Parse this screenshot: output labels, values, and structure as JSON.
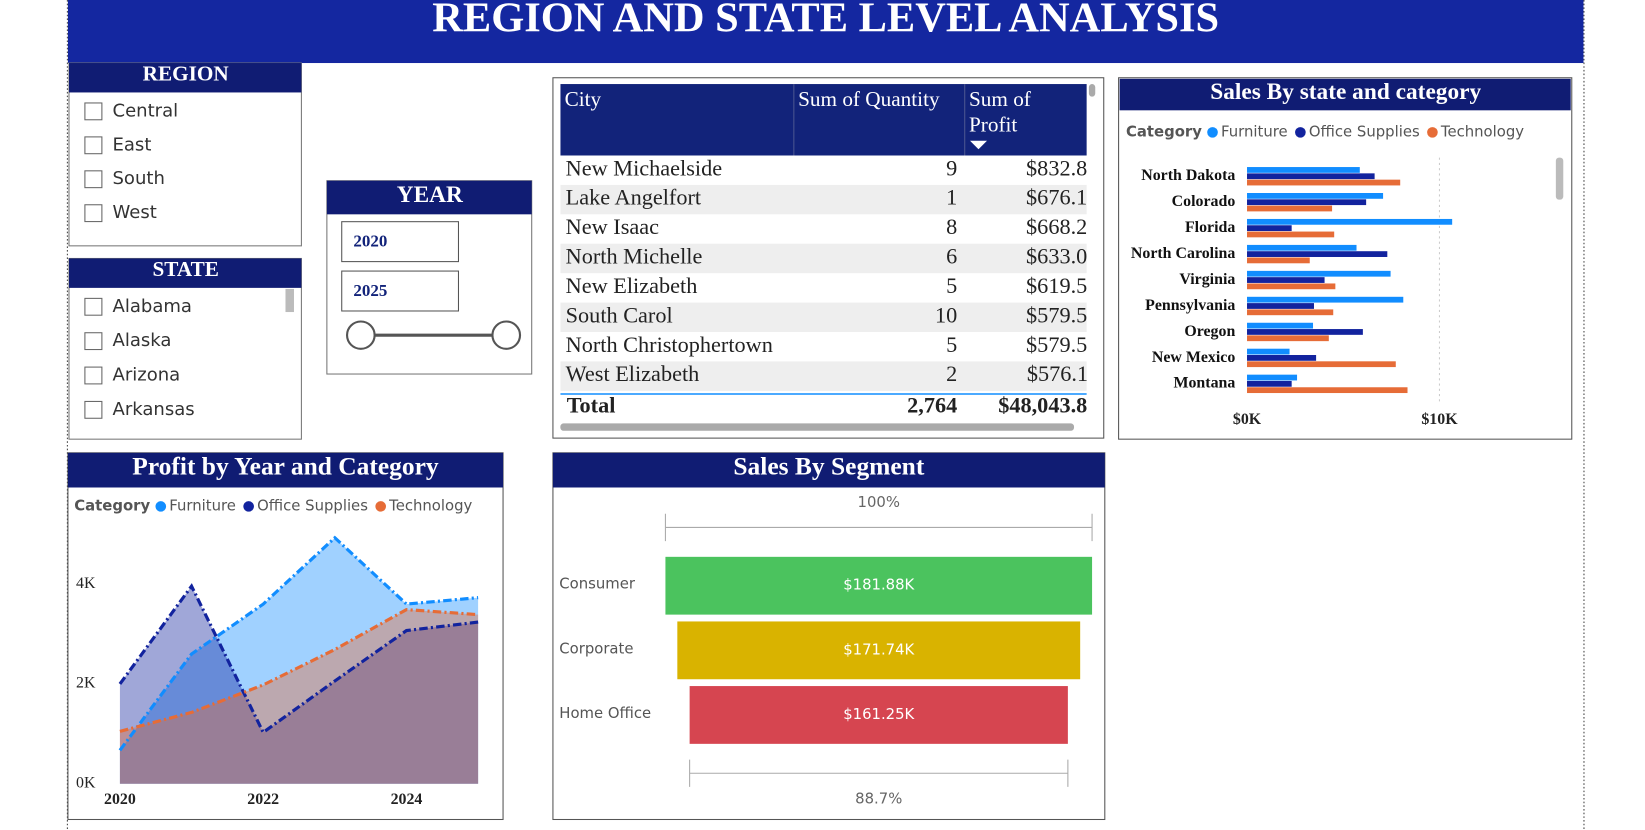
{
  "header": {
    "title": "REGION AND STATE LEVEL ANALYSIS"
  },
  "region_slicer": {
    "title": "REGION",
    "items": [
      "Central",
      "East",
      "South",
      "West"
    ]
  },
  "state_slicer": {
    "title": "STATE",
    "items": [
      "Alabama",
      "Alaska",
      "Arizona",
      "Arkansas"
    ]
  },
  "year_slicer": {
    "title": "YEAR",
    "from": "2020",
    "to": "2025"
  },
  "table": {
    "columns": [
      "City",
      "Sum of Quantity",
      "Sum of Profit"
    ],
    "rows": [
      [
        "New Michaelside",
        9,
        "$832.84"
      ],
      [
        "Lake Angelfort",
        1,
        "$676.18"
      ],
      [
        "New Isaac",
        8,
        "$668.27"
      ],
      [
        "North Michelle",
        6,
        "$633.02"
      ],
      [
        "New Elizabeth",
        5,
        "$619.58"
      ],
      [
        "South Carol",
        10,
        "$579.55"
      ],
      [
        "North Christophertown",
        5,
        "$579.52"
      ],
      [
        "West Elizabeth",
        2,
        "$576.11"
      ]
    ],
    "total": [
      "Total",
      "2,764",
      "$48,043.88"
    ]
  },
  "chart_data": [
    {
      "type": "hbar",
      "title": "Sales By state and category",
      "legend_title": "Category",
      "categories": [
        "North Dakota",
        "Colorado",
        "Florida",
        "North Carolina",
        "Virginia",
        "Pennsylvania",
        "Oregon",
        "New Mexico",
        "Montana"
      ],
      "series": [
        {
          "name": "Furniture",
          "color": "#118DFF",
          "values": [
            5860,
            7070,
            10660,
            5690,
            7460,
            8120,
            3430,
            2210,
            2600
          ]
        },
        {
          "name": "Office Supplies",
          "color": "#12239E",
          "values": [
            6630,
            6190,
            2320,
            7290,
            4030,
            3480,
            6020,
            3590,
            2320
          ]
        },
        {
          "name": "Technology",
          "color": "#E66C37",
          "values": [
            7960,
            4420,
            4530,
            3260,
            4590,
            4480,
            4250,
            7730,
            8340
          ]
        }
      ],
      "xlim": [
        0,
        15000
      ],
      "xticks": [
        {
          "value": 0,
          "label": "$0K"
        },
        {
          "value": 10000,
          "label": "$10K"
        }
      ],
      "grid": true
    },
    {
      "type": "area",
      "title": "Profit by Year and Category",
      "legend_title": "Category",
      "x": [
        2020,
        2021,
        2022,
        2023,
        2024,
        2025
      ],
      "series": [
        {
          "name": "Furniture",
          "color": "#118DFF",
          "values": [
            670,
            2600,
            3600,
            4930,
            3600,
            3730
          ]
        },
        {
          "name": "Office Supplies",
          "color": "#12239E",
          "values": [
            2000,
            3960,
            1030,
            2060,
            3070,
            3240
          ]
        },
        {
          "name": "Technology",
          "color": "#E66C37",
          "values": [
            1050,
            1430,
            1980,
            2690,
            3490,
            3390
          ]
        }
      ],
      "xlim": [
        2020,
        2025
      ],
      "xticks": [
        2020,
        2022,
        2024
      ],
      "ylim": [
        0,
        5000
      ],
      "yticks": [
        {
          "value": 0,
          "label": "0K"
        },
        {
          "value": 2000,
          "label": "2K"
        },
        {
          "value": 4000,
          "label": "4K"
        }
      ]
    },
    {
      "type": "funnel",
      "title": "Sales By Segment",
      "categories": [
        "Consumer",
        "Corporate",
        "Home Office"
      ],
      "values": [
        181880,
        171740,
        161250
      ],
      "value_labels": [
        "$181.88K",
        "$171.74K",
        "$161.25K"
      ],
      "colors": [
        "#4BC35E",
        "#D9B300",
        "#D64550"
      ],
      "annotations": [
        "100%",
        "88.7%"
      ]
    }
  ]
}
